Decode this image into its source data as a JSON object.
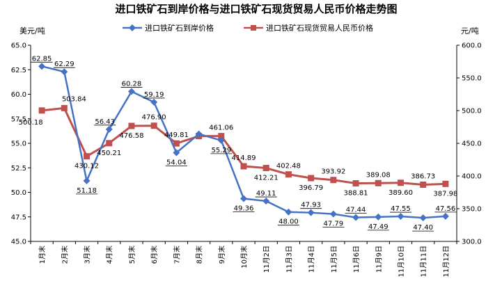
{
  "chart_data": {
    "type": "line",
    "title": "进口铁矿石到岸价格与进口铁矿石现货贸易人民币价格走势图",
    "ylabel": "美元/吨",
    "y2label": "元/吨",
    "xlabel": "",
    "ylim": [
      45.0,
      65.0
    ],
    "y2lim": [
      300.0,
      600.0
    ],
    "yticks": [
      "45.0",
      "47.5",
      "50.0",
      "52.5",
      "55.0",
      "57.5",
      "60.0",
      "62.5",
      "65.0"
    ],
    "y2ticks": [
      "300.0",
      "350.0",
      "400.0",
      "450.0",
      "500.0",
      "550.0",
      "600.0"
    ],
    "grid": false,
    "legend_position": "top",
    "categories": [
      "1月末",
      "2月末",
      "3月末",
      "4月末",
      "5月末",
      "6月末",
      "7月末",
      "8月末",
      "9月末",
      "10月末",
      "11月2日",
      "11月3日",
      "11月4日",
      "11月5日",
      "11月6日",
      "11月9日",
      "11月10日",
      "11月11日",
      "11月12日"
    ],
    "series": [
      {
        "name": "进口铁矿石到岸价格",
        "axis": "left",
        "color": "#4472c4",
        "marker": "diamond",
        "values": [
          62.85,
          62.29,
          51.18,
          56.43,
          60.28,
          59.19,
          54.04,
          55.95,
          55.29,
          49.36,
          49.11,
          48.0,
          47.93,
          47.79,
          47.44,
          47.49,
          47.55,
          47.4,
          47.56
        ],
        "labels": [
          "62.85",
          "62.29",
          "51.18",
          "56.43",
          "60.28",
          "59.19",
          "54.04",
          "",
          "55.29",
          "49.36",
          "49.11",
          "48.00",
          "47.93",
          "47.79",
          "47.44",
          "47.49",
          "47.55",
          "47.40",
          "47.56"
        ]
      },
      {
        "name": "进口铁矿石现货贸易人民币价格",
        "axis": "right",
        "color": "#c0504d",
        "marker": "square",
        "values": [
          500.18,
          503.84,
          430.12,
          450.21,
          476.58,
          476.9,
          449.81,
          461.0,
          461.06,
          414.89,
          412.21,
          402.48,
          396.79,
          393.92,
          388.81,
          389.08,
          389.6,
          386.73,
          387.98
        ],
        "labels": [
          "500.18",
          "503.84",
          "430.12",
          "450.21",
          "476.58",
          "476.90",
          "449.81",
          "",
          "461.06",
          "414.89",
          "412.21",
          "402.48",
          "396.79",
          "393.92",
          "388.81",
          "389.08",
          "389.60",
          "386.73",
          "387.98"
        ]
      }
    ]
  }
}
